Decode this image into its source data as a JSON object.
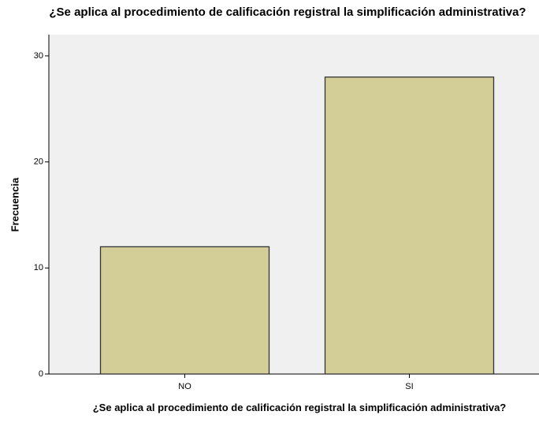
{
  "chart_data": {
    "type": "bar",
    "title": "¿Se aplica al procedimiento de calificación registral la simplificación administrativa?",
    "x_label": "¿Se aplica al procedimiento de calificación registral la simplificación administrativa?",
    "y_label": "Frecuencia",
    "categories": [
      "NO",
      "SI"
    ],
    "values": [
      12,
      28
    ],
    "color": "#d3ce97",
    "ylim": [
      0,
      32
    ],
    "yticks": [
      0,
      10,
      20,
      30
    ],
    "grid": false
  }
}
